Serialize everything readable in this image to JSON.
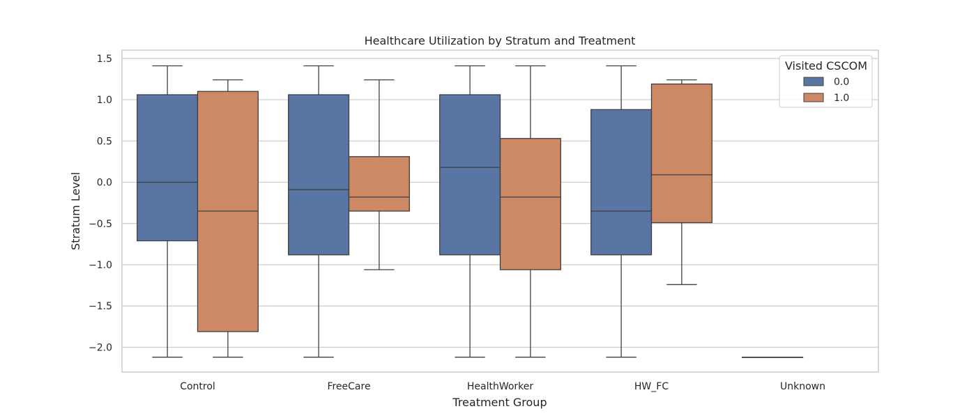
{
  "chart_data": {
    "type": "box",
    "title": "Healthcare Utilization by Stratum and Treatment",
    "xlabel": "Treatment Group",
    "ylabel": "Stratum Level",
    "categories": [
      "Control",
      "FreeCare",
      "HealthWorker",
      "HW_FC",
      "Unknown"
    ],
    "ylim": [
      -2.3,
      1.6
    ],
    "yticks": [
      1.5,
      1.0,
      0.5,
      0.0,
      -0.5,
      -1.0,
      -1.5,
      -2.0
    ],
    "ytick_labels": [
      "1.5",
      "1.0",
      "0.5",
      "0.0",
      "−0.5",
      "−1.0",
      "−1.5",
      "−2.0"
    ],
    "grid": "horizontal",
    "legend": {
      "title": "Visited CSCOM",
      "placement": "top-right"
    },
    "series": [
      {
        "name": "0.0",
        "color": "#5875a4",
        "boxes": [
          {
            "category": "Control",
            "whisker_low": -2.12,
            "q1": -0.71,
            "median": 0.0,
            "q3": 1.06,
            "whisker_high": 1.41
          },
          {
            "category": "FreeCare",
            "whisker_low": -2.12,
            "q1": -0.88,
            "median": -0.09,
            "q3": 1.06,
            "whisker_high": 1.41
          },
          {
            "category": "HealthWorker",
            "whisker_low": -2.12,
            "q1": -0.88,
            "median": 0.18,
            "q3": 1.06,
            "whisker_high": 1.41
          },
          {
            "category": "HW_FC",
            "whisker_low": -2.12,
            "q1": -0.88,
            "median": -0.35,
            "q3": 0.88,
            "whisker_high": 1.41
          },
          {
            "category": "Unknown",
            "whisker_low": -2.12,
            "q1": -2.12,
            "median": -2.12,
            "q3": -2.12,
            "whisker_high": -2.12
          }
        ]
      },
      {
        "name": "1.0",
        "color": "#cc8963",
        "boxes": [
          {
            "category": "Control",
            "whisker_low": -2.12,
            "q1": -1.81,
            "median": -0.35,
            "q3": 1.1,
            "whisker_high": 1.24
          },
          {
            "category": "FreeCare",
            "whisker_low": -1.06,
            "q1": -0.35,
            "median": -0.18,
            "q3": 0.31,
            "whisker_high": 1.24
          },
          {
            "category": "HealthWorker",
            "whisker_low": -2.12,
            "q1": -1.06,
            "median": -0.18,
            "q3": 0.53,
            "whisker_high": 1.41
          },
          {
            "category": "HW_FC",
            "whisker_low": -1.24,
            "q1": -0.49,
            "median": 0.09,
            "q3": 1.19,
            "whisker_high": 1.24
          }
        ]
      }
    ]
  }
}
